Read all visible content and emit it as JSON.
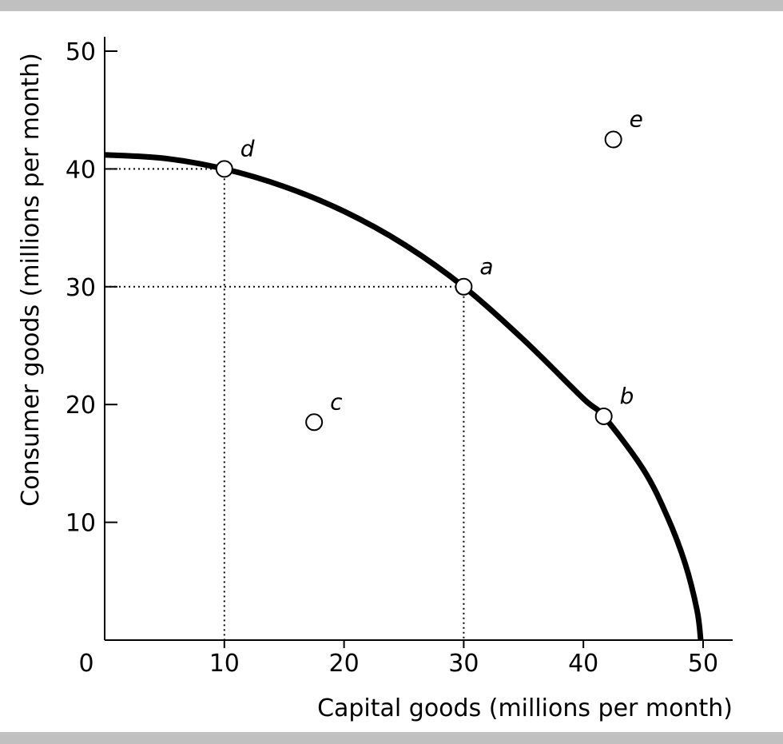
{
  "colors": {
    "frame_bar": "#c0c0c0",
    "ink": "#000000",
    "background": "#ffffff"
  },
  "chart_data": {
    "type": "line",
    "xlabel": "Capital goods (millions per month)",
    "ylabel": "Consumer goods (millions  per month)",
    "xlim": [
      0,
      50
    ],
    "ylim": [
      0,
      50
    ],
    "origin_label": "0",
    "x_ticks": [
      10,
      20,
      30,
      40,
      50
    ],
    "y_ticks": [
      10,
      20,
      30,
      40,
      50
    ],
    "grid": false,
    "series": [
      {
        "curve": [
          [
            0,
            41.2
          ],
          [
            5,
            40.9
          ],
          [
            10,
            40
          ],
          [
            15,
            38.5
          ],
          [
            20,
            36.4
          ],
          [
            25,
            33.6
          ],
          [
            30,
            30
          ],
          [
            35,
            25.5
          ],
          [
            40,
            20.5
          ],
          [
            41.7,
            19
          ],
          [
            45,
            14.5
          ],
          [
            47,
            10.5
          ],
          [
            48.5,
            6.5
          ],
          [
            49.5,
            2.5
          ],
          [
            49.8,
            0
          ]
        ]
      }
    ],
    "points": [
      {
        "label": "a",
        "x": 30,
        "y": 30
      },
      {
        "label": "b",
        "x": 41.7,
        "y": 19
      },
      {
        "label": "c",
        "x": 17.5,
        "y": 18.5
      },
      {
        "label": "d",
        "x": 10,
        "y": 40
      },
      {
        "label": "e",
        "x": 42.5,
        "y": 42.5
      }
    ],
    "guides": [
      {
        "x": 10,
        "y": 40
      },
      {
        "x": 30,
        "y": 30
      }
    ]
  }
}
